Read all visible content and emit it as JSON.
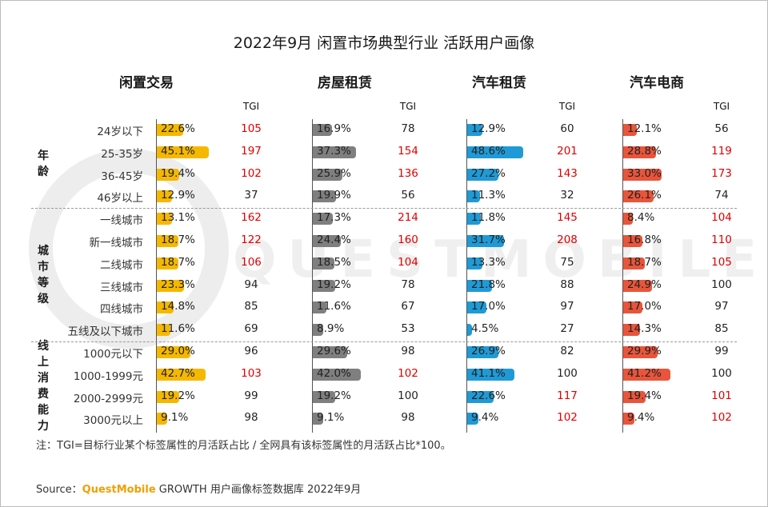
{
  "chart_data": {
    "type": "bar",
    "title": "2022年9月 闲置市场典型行业 活跃用户画像",
    "tgi_label": "TGI",
    "colors": {
      "闲置交易": "#f5b800",
      "房屋租赁": "#7f7f7f",
      "汽车租赁": "#1f9ad6",
      "汽车电商": "#e8553b"
    },
    "tgi_highlight_color": "#e00000",
    "tgi_normal_color": "#222222",
    "tgi_threshold": 100,
    "groups": [
      {
        "label": "年龄",
        "rows": [
          "24岁以下",
          "25-35岁",
          "36-45岁",
          "46岁以上"
        ]
      },
      {
        "label": "城市等级",
        "rows": [
          "一线城市",
          "新一线城市",
          "二线城市",
          "三线城市",
          "四线城市",
          "五线及以下城市"
        ]
      },
      {
        "label": "线上消费能力",
        "rows": [
          "1000元以下",
          "1000-1999元",
          "2000-2999元",
          "3000元以上"
        ]
      }
    ],
    "series": [
      {
        "name": "闲置交易",
        "values": [
          "22.6%",
          "45.1%",
          "19.4%",
          "12.9%",
          "13.1%",
          "18.7%",
          "18.7%",
          "23.3%",
          "14.8%",
          "11.6%",
          "29.0%",
          "42.7%",
          "19.2%",
          "9.1%"
        ],
        "tgi": [
          105,
          197,
          102,
          37,
          162,
          122,
          106,
          94,
          85,
          69,
          96,
          103,
          99,
          98
        ]
      },
      {
        "name": "房屋租赁",
        "values": [
          "16.9%",
          "37.3%",
          "25.9%",
          "19.9%",
          "17.3%",
          "24.4%",
          "18.5%",
          "19.2%",
          "11.6%",
          "8.9%",
          "29.6%",
          "42.0%",
          "19.2%",
          "9.1%"
        ],
        "tgi": [
          78,
          154,
          136,
          56,
          214,
          160,
          104,
          78,
          67,
          53,
          98,
          102,
          100,
          98
        ]
      },
      {
        "name": "汽车租赁",
        "values": [
          "12.9%",
          "48.6%",
          "27.2%",
          "11.3%",
          "11.8%",
          "31.7%",
          "13.3%",
          "21.8%",
          "17.0%",
          "4.5%",
          "26.9%",
          "41.1%",
          "22.6%",
          "9.4%"
        ],
        "tgi": [
          60,
          201,
          143,
          32,
          145,
          208,
          75,
          88,
          97,
          27,
          82,
          100,
          117,
          102
        ]
      },
      {
        "name": "汽车电商",
        "values": [
          "12.1%",
          "28.8%",
          "33.0%",
          "26.1%",
          "8.4%",
          "16.8%",
          "18.7%",
          "24.9%",
          "17.0%",
          "14.3%",
          "29.9%",
          "41.2%",
          "19.4%",
          "9.4%"
        ],
        "tgi": [
          56,
          119,
          173,
          74,
          104,
          110,
          105,
          100,
          97,
          85,
          99,
          100,
          101,
          102
        ]
      }
    ]
  },
  "note": "注：TGI=目标行业某个标签属性的月活跃占比 / 全网具有该标签属性的月活跃占比*100。",
  "source": {
    "prefix": "Source：",
    "brand": "QuestMobile",
    "rest": " GROWTH 用户画像标签数据库 2022年9月"
  },
  "watermark": "QUESTMOBILE"
}
